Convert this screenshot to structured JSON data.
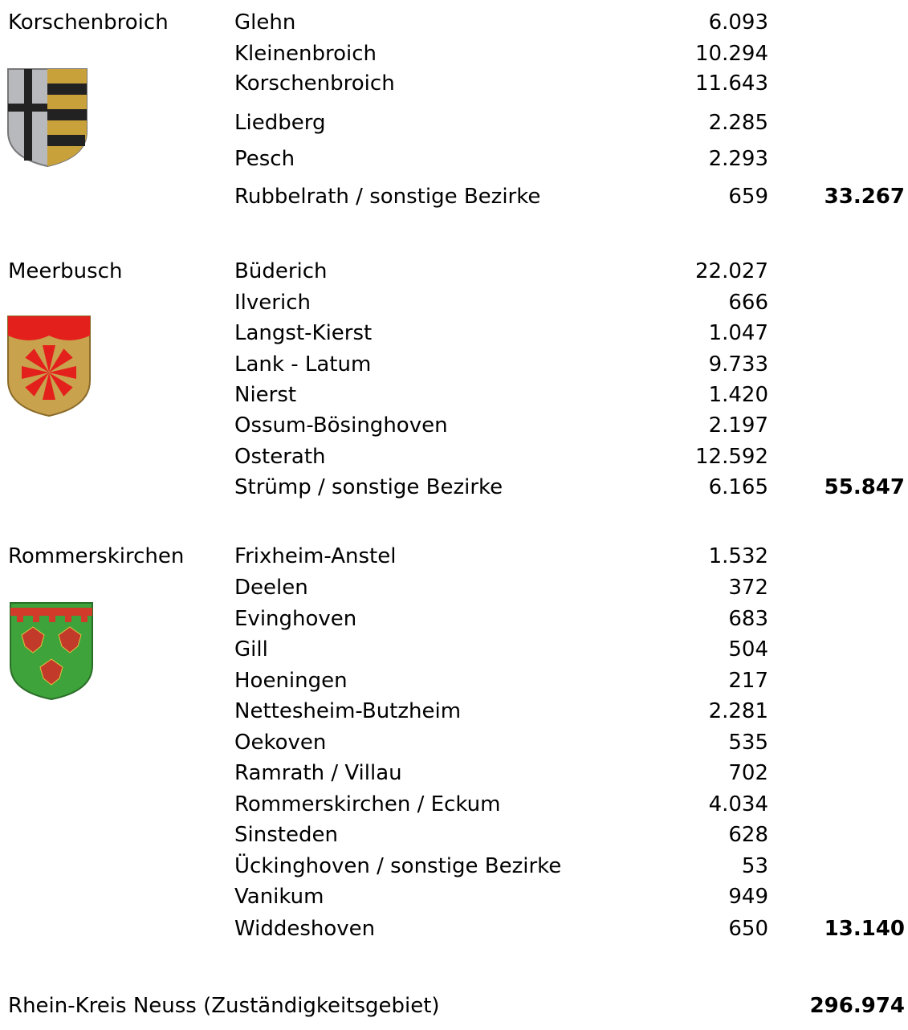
{
  "groups": [
    {
      "name": "Korschenbroich",
      "total": "33.267",
      "districts": [
        {
          "name": "Glehn",
          "value": "6.093"
        },
        {
          "name": "Kleinenbroich",
          "value": "10.294"
        },
        {
          "name": "Korschenbroich",
          "value": "11.643"
        },
        {
          "name": "Liedberg",
          "value": "2.285"
        },
        {
          "name": "Pesch",
          "value": "2.293"
        },
        {
          "name": "Rubbelrath / sonstige Bezirke",
          "value": "659"
        }
      ]
    },
    {
      "name": "Meerbusch",
      "total": "55.847",
      "districts": [
        {
          "name": "Büderich",
          "value": "22.027"
        },
        {
          "name": "Ilverich",
          "value": "666"
        },
        {
          "name": "Langst-Kierst",
          "value": "1.047"
        },
        {
          "name": "Lank - Latum",
          "value": "9.733"
        },
        {
          "name": "Nierst",
          "value": "1.420"
        },
        {
          "name": "Ossum-Bösinghoven",
          "value": "2.197"
        },
        {
          "name": "Osterath",
          "value": "12.592"
        },
        {
          "name": "Strümp / sonstige Bezirke",
          "value": "6.165"
        }
      ]
    },
    {
      "name": "Rommerskirchen",
      "total": "13.140",
      "districts": [
        {
          "name": "Frixheim-Anstel",
          "value": "1.532"
        },
        {
          "name": "Deelen",
          "value": "372"
        },
        {
          "name": "Evinghoven",
          "value": "683"
        },
        {
          "name": "Gill",
          "value": "504"
        },
        {
          "name": "Hoeningen",
          "value": "217"
        },
        {
          "name": "Nettesheim-Butzheim",
          "value": "2.281"
        },
        {
          "name": "Oekoven",
          "value": "535"
        },
        {
          "name": "Ramrath / Villau",
          "value": "702"
        },
        {
          "name": "Rommerskirchen / Eckum",
          "value": "4.034"
        },
        {
          "name": "Sinsteden",
          "value": "628"
        },
        {
          "name": "Ückinghoven / sonstige Bezirke",
          "value": "53"
        },
        {
          "name": "Vanikum",
          "value": "949"
        },
        {
          "name": "Widdeshoven",
          "value": "650"
        }
      ]
    }
  ],
  "footer": {
    "label": "Rhein-Kreis Neuss (Zuständigkeitsgebiet)",
    "total": "296.974"
  }
}
